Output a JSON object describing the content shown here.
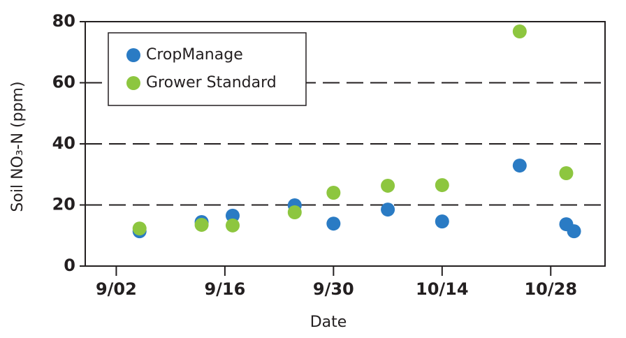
{
  "chart_data": {
    "type": "scatter",
    "x_label": "Date",
    "y_label": "Soil NO₃-N (ppm)",
    "series": [
      {
        "name": "CropManage",
        "color": "#2a7bc4",
        "x": [
          "9/05",
          "9/13",
          "9/17",
          "9/25",
          "9/30",
          "10/07",
          "10/14",
          "10/24",
          "10/30",
          "10/31"
        ],
        "values": [
          11.4,
          14.4,
          16.5,
          19.9,
          13.9,
          18.5,
          14.6,
          32.9,
          13.7,
          11.4
        ]
      },
      {
        "name": "Grower Standard",
        "color": "#8dc63f",
        "x": [
          "9/05",
          "9/13",
          "9/17",
          "9/25",
          "9/30",
          "10/07",
          "10/14",
          "10/24",
          "10/30"
        ],
        "values": [
          12.3,
          13.5,
          13.3,
          17.6,
          24,
          26.3,
          26.5,
          76.8,
          30.4
        ]
      }
    ],
    "xlim": [
      "8/29",
      "11/04"
    ],
    "xticks": [
      "9/02",
      "9/16",
      "9/30",
      "10/14",
      "10/28"
    ],
    "ylim": [
      0,
      80
    ],
    "yticks": [
      0,
      20,
      40,
      60,
      80
    ],
    "grid": true,
    "legend": "upper left"
  }
}
